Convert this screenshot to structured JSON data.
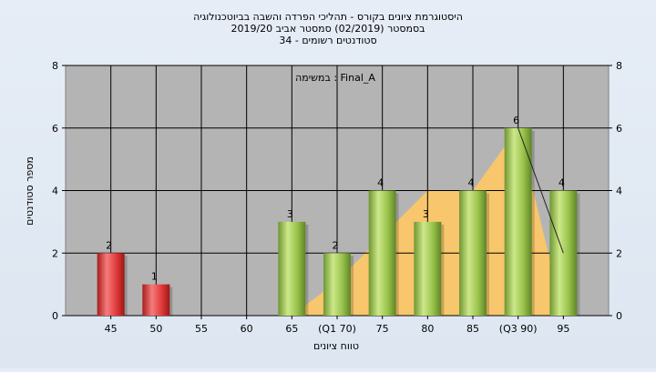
{
  "chart_data": {
    "type": "bar",
    "title_lines": [
      "היסטוגרמת ציונים בקורס - תהליכי הפרדה והשבה בביוטכנולוגיה",
      "בסמסטר  (02/2019)  סמסטר אביב 2019/20",
      "סטודנטים רשומים - 34"
    ],
    "series_label": "במשימה : Final_A",
    "xlabel": "טווח ציונים",
    "ylabel": "מספר סטודנטים",
    "categories": [
      "45",
      "50",
      "55",
      "60",
      "65",
      "(Q1 70)",
      "75",
      "80",
      "85",
      "(Q3 90)",
      "95"
    ],
    "values": [
      2,
      1,
      0,
      0,
      3,
      2,
      4,
      3,
      4,
      6,
      4
    ],
    "bar_colors": [
      "red",
      "red",
      "green",
      "green",
      "green",
      "green",
      "green",
      "green",
      "green",
      "green",
      "green"
    ],
    "area_band": [
      {
        "x": "65",
        "y": 0
      },
      {
        "x": "(Q1 70)",
        "y": 1.1
      },
      {
        "x": "80",
        "y": 4
      },
      {
        "x": "85",
        "y": 4
      },
      {
        "x": "(Q3 90)",
        "y": 6
      },
      {
        "x": "95",
        "y": 0
      }
    ],
    "trend_line": [
      {
        "x": "(Q3 90)",
        "y": 6
      },
      {
        "x": "95",
        "y": 2
      }
    ],
    "ylim": [
      0,
      8
    ],
    "yticks": [
      0,
      2,
      4,
      6,
      8
    ],
    "grid": true,
    "colors": {
      "plot_bg": "#b4b4b4",
      "red_bar": "#e23a3a",
      "green_bar": "#98c24a",
      "area": "#ffc864",
      "gridline": "#000000"
    }
  }
}
